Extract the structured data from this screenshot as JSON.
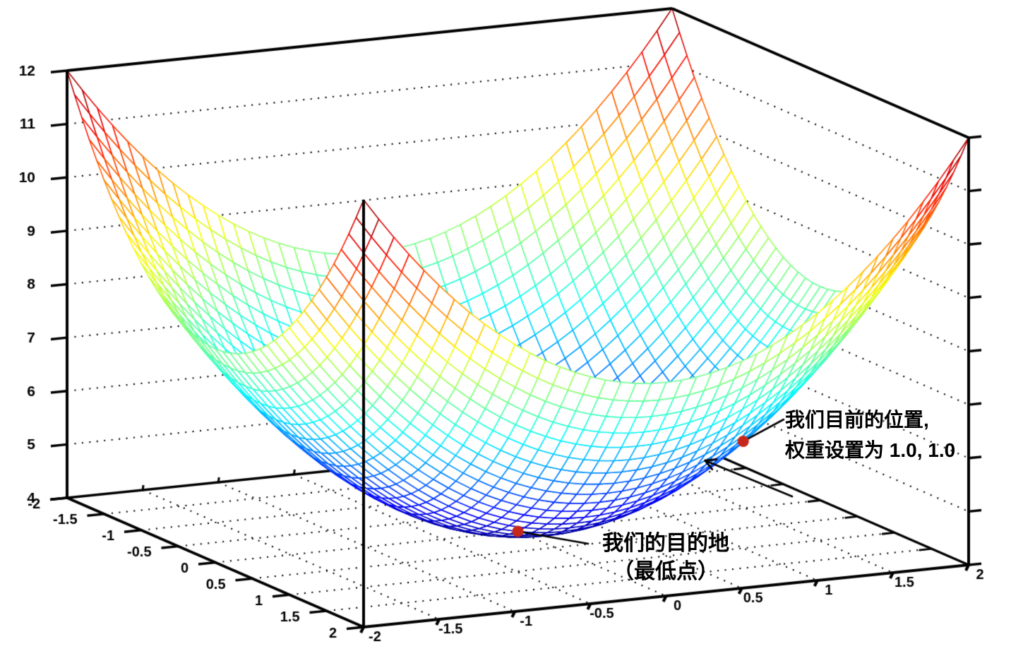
{
  "chart_data": {
    "type": "surface",
    "title": "",
    "surface": {
      "expression": "z = x^2 + y^2 + 4",
      "js_expression": "x*x + y*y + 4",
      "x_range": [
        -2,
        2
      ],
      "y_range": [
        -2,
        2
      ],
      "z_range": [
        4,
        12
      ],
      "grid_divisions": 40,
      "colormap": "jet",
      "hidden_faces": "white"
    },
    "axes": {
      "x": {
        "ticks": [
          -2,
          -1.5,
          -1,
          -0.5,
          0,
          0.5,
          1,
          1.5,
          2
        ],
        "labels": [
          "-2",
          "-1.5",
          "-1",
          "-0.5",
          "0",
          "0.5",
          "1",
          "1.5",
          "2"
        ]
      },
      "y": {
        "ticks": [
          -2,
          -1.5,
          -1,
          -0.5,
          0,
          0.5,
          1,
          1.5,
          2
        ],
        "labels": [
          "-2",
          "-1.5",
          "-1",
          "-0.5",
          "0",
          "0.5",
          "1",
          "1.5",
          "2"
        ]
      },
      "z": {
        "ticks": [
          4,
          5,
          6,
          7,
          8,
          9,
          10,
          11,
          12
        ],
        "labels": [
          "4",
          "5",
          "6",
          "7",
          "8",
          "9",
          "10",
          "11",
          "12"
        ]
      },
      "z_right": {
        "ticks": [
          4,
          5,
          6,
          7,
          8,
          9,
          10,
          11,
          12
        ],
        "labels": []
      }
    },
    "grid": {
      "style": "dotted",
      "wall_z_levels": [
        5,
        6,
        7,
        8,
        9,
        10,
        11
      ],
      "floor_x_lines": [
        -1.5,
        -1,
        -0.5,
        0,
        0.5,
        1,
        1.5
      ],
      "floor_y_lines": [
        -1.5,
        -1,
        -0.5,
        0,
        0.5,
        1,
        1.5
      ]
    },
    "annotations": [
      {
        "point": {
          "x": 0,
          "y": 0,
          "z": 4
        },
        "lines": [
          "我们的目的地",
          "（最低点）"
        ]
      },
      {
        "point": {
          "x": 1,
          "y": 1,
          "z": 6
        },
        "lines": [
          "我们目前的位置,",
          "权重设置为 1.0, 1.0"
        ]
      }
    ],
    "descent_arrow": {
      "target": {
        "x": 1.2,
        "y": 0.65
      }
    },
    "style": {
      "background": "#ffffff",
      "marker_color": "#c7271a",
      "axis_color": "#000000",
      "grid_dot_color": "#000000",
      "label_color": "#000000",
      "annotation_color": "#000000"
    }
  }
}
